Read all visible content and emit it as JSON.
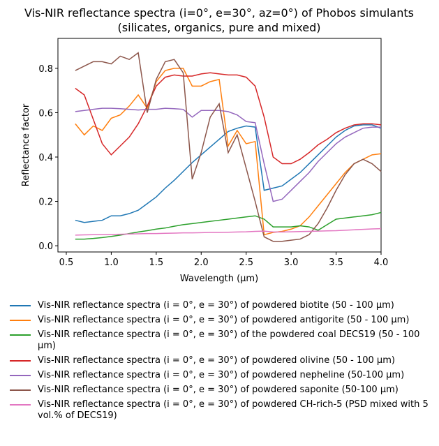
{
  "chart_data": {
    "type": "line",
    "title": [
      "Vis-NIR reflectance spectra (i=0°, e=30°, az=0°) of Phobos simulants",
      "(silicates, organics, pure and mixed)"
    ],
    "x_label": "Wavelength (μm)",
    "y_label": "Reflectance factor",
    "xlim": [
      0.407,
      4.0
    ],
    "ylim": [
      -0.028,
      0.935
    ],
    "xticks": [
      0.5,
      {
        "value": 1,
        "label": "1.0"
      },
      1.5,
      {
        "value": 2,
        "label": "2.0"
      },
      2.5,
      {
        "value": 3,
        "label": "3.0"
      },
      3.5,
      {
        "value": 4,
        "label": "4.0"
      }
    ],
    "yticks": [
      {
        "value": 0,
        "label": "0.0"
      },
      0.2,
      0.4,
      0.6,
      0.8
    ],
    "x": [
      0.6,
      0.7,
      0.8,
      0.9,
      1.0,
      1.1,
      1.2,
      1.3,
      1.4,
      1.5,
      1.6,
      1.7,
      1.8,
      1.9,
      2.0,
      2.1,
      2.2,
      2.3,
      2.4,
      2.5,
      2.6,
      2.7,
      2.8,
      2.9,
      3.0,
      3.1,
      3.2,
      3.3,
      3.4,
      3.5,
      3.6,
      3.7,
      3.8,
      3.9,
      4.0
    ],
    "series": [
      {
        "name": "Vis-NIR reflectance spectra (i = 0°, e = 30°) of powdered biotite (50 - 100 µm)",
        "color": "#1f77b4",
        "values": [
          0.115,
          0.105,
          0.11,
          0.115,
          0.135,
          0.135,
          0.145,
          0.16,
          0.19,
          0.22,
          0.26,
          0.295,
          0.335,
          0.375,
          0.41,
          0.445,
          0.48,
          0.515,
          0.53,
          0.54,
          0.535,
          0.25,
          0.26,
          0.27,
          0.3,
          0.33,
          0.37,
          0.41,
          0.45,
          0.49,
          0.52,
          0.54,
          0.545,
          0.545,
          0.53
        ]
      },
      {
        "name": "Vis-NIR reflectance spectra (i = 0°, e = 30°) of powdered antigorite (50 - 100 µm)",
        "color": "#ff7f0e",
        "values": [
          0.55,
          0.5,
          0.54,
          0.52,
          0.575,
          0.59,
          0.63,
          0.68,
          0.62,
          0.74,
          0.79,
          0.8,
          0.8,
          0.72,
          0.72,
          0.74,
          0.75,
          0.45,
          0.52,
          0.46,
          0.47,
          0.05,
          0.06,
          0.065,
          0.075,
          0.09,
          0.13,
          0.18,
          0.23,
          0.28,
          0.33,
          0.37,
          0.39,
          0.41,
          0.415
        ]
      },
      {
        "name": "Vis-NIR reflectance spectra (i = 0°, e = 30°) of the powdered coal DECS19 (50 - 100 µm)",
        "color": "#2ca02c",
        "values": [
          0.03,
          0.03,
          0.033,
          0.037,
          0.042,
          0.048,
          0.055,
          0.062,
          0.068,
          0.075,
          0.08,
          0.088,
          0.095,
          0.1,
          0.105,
          0.11,
          0.115,
          0.12,
          0.125,
          0.13,
          0.135,
          0.12,
          0.085,
          0.085,
          0.085,
          0.09,
          0.085,
          0.07,
          0.095,
          0.12,
          0.125,
          0.13,
          0.135,
          0.14,
          0.15
        ]
      },
      {
        "name": "Vis-NIR reflectance spectra (i = 0°, e = 30°) of powdered olivine (50 - 100 µm)",
        "color": "#d62728",
        "values": [
          0.71,
          0.68,
          0.57,
          0.46,
          0.41,
          0.45,
          0.49,
          0.55,
          0.63,
          0.72,
          0.76,
          0.77,
          0.765,
          0.765,
          0.775,
          0.78,
          0.775,
          0.77,
          0.77,
          0.76,
          0.72,
          0.58,
          0.4,
          0.37,
          0.37,
          0.39,
          0.42,
          0.455,
          0.48,
          0.51,
          0.53,
          0.545,
          0.55,
          0.55,
          0.545
        ]
      },
      {
        "name": "Vis-NIR reflectance spectra (i = 0°, e = 30°) of powdered nepheline (50-100 µm)",
        "color": "#9467bd",
        "values": [
          0.605,
          0.61,
          0.615,
          0.62,
          0.62,
          0.618,
          0.615,
          0.612,
          0.615,
          0.615,
          0.62,
          0.618,
          0.615,
          0.58,
          0.61,
          0.61,
          0.61,
          0.605,
          0.59,
          0.56,
          0.555,
          0.37,
          0.2,
          0.21,
          0.25,
          0.29,
          0.33,
          0.38,
          0.42,
          0.46,
          0.49,
          0.51,
          0.53,
          0.535,
          0.535
        ]
      },
      {
        "name": "Vis-NIR reflectance spectra (i = 0°, e = 30°) of powdered saponite (50-100 µm)",
        "color": "#8c564b",
        "values": [
          0.79,
          0.81,
          0.83,
          0.83,
          0.82,
          0.855,
          0.84,
          0.87,
          0.6,
          0.75,
          0.83,
          0.84,
          0.78,
          0.3,
          0.42,
          0.58,
          0.64,
          0.42,
          0.5,
          0.35,
          0.2,
          0.04,
          0.02,
          0.02,
          0.025,
          0.03,
          0.05,
          0.1,
          0.17,
          0.25,
          0.32,
          0.37,
          0.39,
          0.37,
          0.335
        ]
      },
      {
        "name": "Vis-NIR reflectance spectra (i = 0°, e = 30°) of powdered CH-rich-5 (PSD mixed with 5 vol.% of DECS19)",
        "color": "#e377c2",
        "values": [
          0.048,
          0.049,
          0.05,
          0.05,
          0.051,
          0.052,
          0.053,
          0.054,
          0.055,
          0.055,
          0.056,
          0.057,
          0.058,
          0.058,
          0.059,
          0.06,
          0.06,
          0.061,
          0.062,
          0.063,
          0.065,
          0.066,
          0.062,
          0.062,
          0.063,
          0.064,
          0.065,
          0.066,
          0.067,
          0.068,
          0.07,
          0.072,
          0.074,
          0.076,
          0.077
        ]
      }
    ]
  }
}
